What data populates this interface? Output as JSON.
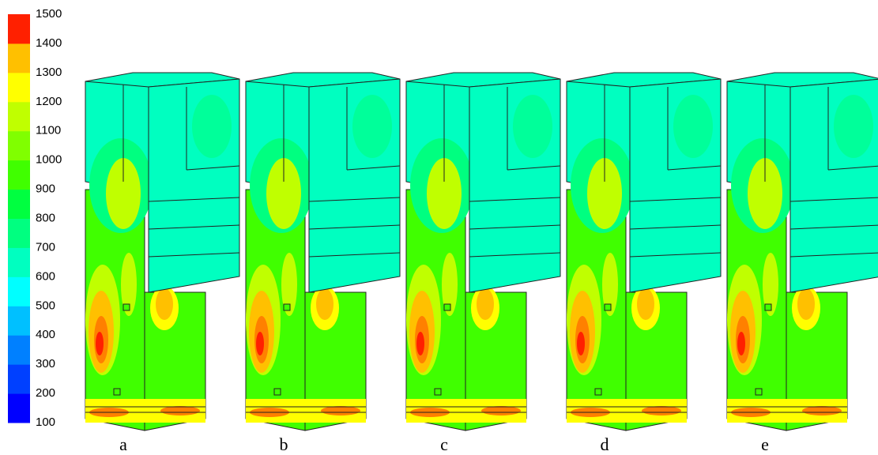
{
  "colorbar": {
    "ticks": [
      100,
      200,
      300,
      400,
      500,
      600,
      700,
      800,
      900,
      1000,
      1100,
      1200,
      1300,
      1400,
      1500
    ],
    "colors": [
      "#0000ff",
      "#0040ff",
      "#0080ff",
      "#00c0ff",
      "#00ffff",
      "#00ffc0",
      "#00ff80",
      "#00ff40",
      "#40ff00",
      "#80ff00",
      "#c0ff00",
      "#ffff00",
      "#ffc000",
      "#ff8000",
      "#ff2000"
    ]
  },
  "panels": [
    {
      "label": "a"
    },
    {
      "label": "b"
    },
    {
      "label": "c"
    },
    {
      "label": "d"
    },
    {
      "label": "e"
    }
  ]
}
